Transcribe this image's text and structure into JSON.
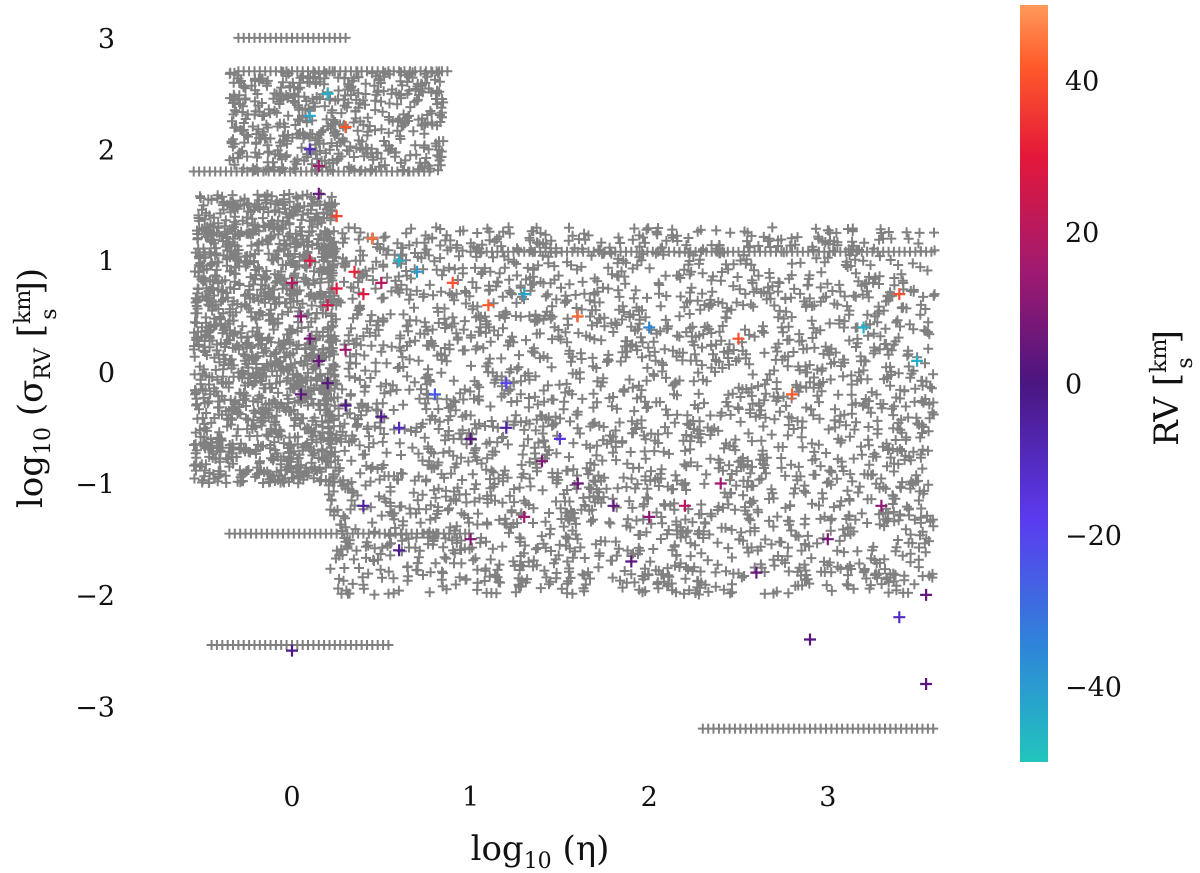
{
  "chart_data": {
    "type": "scatter",
    "marker": "plus",
    "title": "",
    "xlabel": "log₁₀ (η)",
    "ylabel": "log₁₀ (σ_RV [km/s])",
    "xlim": [
      -0.75,
      3.6
    ],
    "ylim": [
      -3.5,
      3.25
    ],
    "xticks": [
      0,
      1,
      2,
      3
    ],
    "yticks": [
      -3,
      -2,
      -1,
      0,
      1,
      2,
      3
    ],
    "xtick_labels": [
      "0",
      "1",
      "2",
      "3"
    ],
    "ytick_labels": [
      "−3",
      "−2",
      "−1",
      "0",
      "1",
      "2",
      "3"
    ],
    "grid": false,
    "background_series": {
      "color": "#808080",
      "description": "all sources, dense grey crosses",
      "point_bands": [
        {
          "x_range": [
            -0.55,
            0.25
          ],
          "y_range": [
            -1.0,
            1.6
          ]
        },
        {
          "x_range": [
            0.2,
            3.6
          ],
          "y_range": [
            -2.0,
            1.3
          ]
        },
        {
          "x_range": [
            -0.35,
            0.85
          ],
          "y_range": [
            1.8,
            2.7
          ]
        }
      ],
      "horizontal_rows": [
        {
          "y": 3.0,
          "x_range": [
            -0.3,
            0.3
          ]
        },
        {
          "y": 2.7,
          "x_range": [
            -0.3,
            0.9
          ]
        },
        {
          "y": 1.8,
          "x_range": [
            -0.55,
            0.8
          ]
        },
        {
          "y": 1.08,
          "x_range": [
            1.0,
            3.6
          ]
        },
        {
          "y": -1.45,
          "x_range": [
            -0.35,
            1.0
          ]
        },
        {
          "y": -2.45,
          "x_range": [
            -0.45,
            0.55
          ]
        },
        {
          "y": -3.2,
          "x_range": [
            2.3,
            3.6
          ]
        }
      ]
    },
    "colored_series": {
      "name": "RV",
      "color_by": "RV",
      "points": [
        [
          0.05,
          0.5,
          12
        ],
        [
          0.1,
          0.3,
          8
        ],
        [
          0.15,
          0.1,
          5
        ],
        [
          0.2,
          0.6,
          25
        ],
        [
          0.25,
          0.75,
          30
        ],
        [
          0.1,
          1.0,
          28
        ],
        [
          0.05,
          -0.2,
          3
        ],
        [
          0.2,
          -0.1,
          2
        ],
        [
          0.3,
          0.2,
          15
        ],
        [
          0.0,
          0.8,
          18
        ],
        [
          0.35,
          0.9,
          32
        ],
        [
          0.4,
          0.7,
          28
        ],
        [
          0.5,
          0.8,
          20
        ],
        [
          0.6,
          1.0,
          -45
        ],
        [
          0.7,
          0.9,
          -40
        ],
        [
          0.45,
          1.2,
          45
        ],
        [
          0.25,
          1.4,
          38
        ],
        [
          0.15,
          1.6,
          5
        ],
        [
          0.3,
          -0.3,
          0
        ],
        [
          0.5,
          -0.4,
          -2
        ],
        [
          0.6,
          -0.5,
          -10
        ],
        [
          0.8,
          -0.2,
          -25
        ],
        [
          1.0,
          -0.6,
          2
        ],
        [
          1.2,
          -0.5,
          -5
        ],
        [
          1.4,
          -0.8,
          10
        ],
        [
          1.6,
          -1.0,
          6
        ],
        [
          1.8,
          -1.2,
          4
        ],
        [
          2.0,
          -1.3,
          12
        ],
        [
          2.2,
          -1.2,
          20
        ],
        [
          2.4,
          -1.0,
          15
        ],
        [
          0.9,
          0.8,
          40
        ],
        [
          1.1,
          0.6,
          42
        ],
        [
          1.3,
          0.7,
          -42
        ],
        [
          1.6,
          0.5,
          44
        ],
        [
          2.0,
          0.4,
          -35
        ],
        [
          2.5,
          0.3,
          40
        ],
        [
          2.8,
          -0.2,
          42
        ],
        [
          3.2,
          0.4,
          -45
        ],
        [
          3.4,
          0.7,
          40
        ],
        [
          3.5,
          0.1,
          -45
        ],
        [
          0.1,
          2.3,
          -42
        ],
        [
          0.2,
          2.5,
          -45
        ],
        [
          0.3,
          2.2,
          42
        ],
        [
          0.1,
          2.0,
          -10
        ],
        [
          0.15,
          1.85,
          15
        ],
        [
          1.2,
          -0.1,
          -20
        ],
        [
          1.5,
          -0.6,
          -15
        ],
        [
          1.9,
          -1.7,
          3
        ],
        [
          2.6,
          -1.8,
          5
        ],
        [
          3.0,
          -1.5,
          8
        ],
        [
          3.3,
          -1.2,
          12
        ],
        [
          3.55,
          -2.0,
          5
        ],
        [
          3.55,
          -2.8,
          3
        ],
        [
          0.4,
          -1.2,
          -5
        ],
        [
          0.6,
          -1.6,
          -3
        ],
        [
          0.0,
          -2.5,
          -2
        ],
        [
          3.4,
          -2.2,
          -10
        ],
        [
          2.9,
          -2.4,
          2
        ],
        [
          1.0,
          -1.5,
          10
        ],
        [
          1.3,
          -1.3,
          15
        ]
      ]
    },
    "colorbar": {
      "label": "RV [km/s]",
      "range": [
        -50,
        50
      ],
      "ticks": [
        -40,
        -20,
        0,
        20,
        40
      ],
      "tick_labels": [
        "−40",
        "−20",
        "0",
        "20",
        "40"
      ],
      "colormap_stops": [
        {
          "value": -50,
          "color": "#22c5be"
        },
        {
          "value": -35,
          "color": "#2e86d8"
        },
        {
          "value": -18,
          "color": "#5b3bf0"
        },
        {
          "value": 0,
          "color": "#4a1680"
        },
        {
          "value": 15,
          "color": "#a01a70"
        },
        {
          "value": 30,
          "color": "#e4183a"
        },
        {
          "value": 42,
          "color": "#ff5a2a"
        },
        {
          "value": 50,
          "color": "#ff9a5a"
        }
      ]
    }
  }
}
